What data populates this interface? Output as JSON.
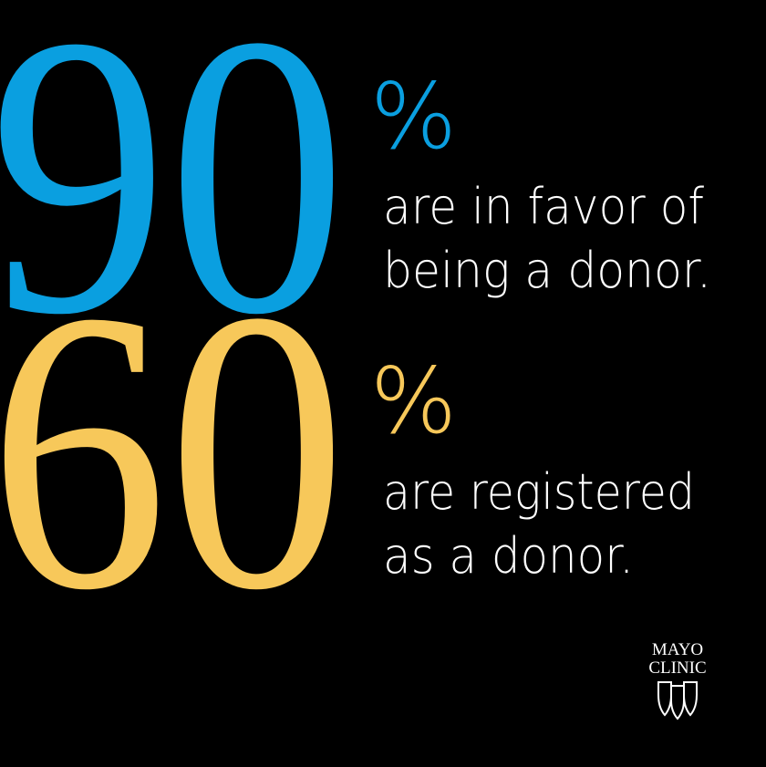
{
  "stats": [
    {
      "number": "90",
      "unit": "%",
      "lines": [
        "are in favor of",
        "being a donor."
      ]
    },
    {
      "number": "60",
      "unit": "%",
      "lines": [
        "are registered",
        "as a donor."
      ]
    }
  ],
  "logo": {
    "lines": [
      "MAYO",
      "CLINIC"
    ]
  }
}
